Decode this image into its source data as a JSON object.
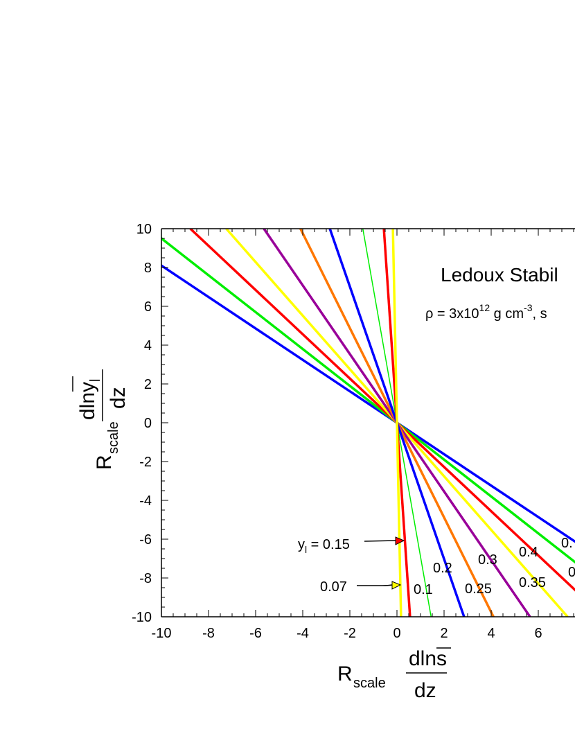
{
  "chart_data": {
    "type": "line",
    "title": "Ledoux Stabil",
    "subtitle": {
      "rho": "ρ = 3x10",
      "exp12": "12",
      "unit": " g cm",
      "exp_neg3": "-3",
      "tail": ",  s"
    },
    "xlabel": {
      "r": "R",
      "sub": "scale",
      "num": "dlns",
      "den": "dz"
    },
    "ylabel": {
      "r": "R",
      "sub": "scale",
      "num": "dlny",
      "num_sub": "l",
      "den": "dz"
    },
    "xlim": [
      -10,
      8.0
    ],
    "ylim": [
      -10,
      10
    ],
    "x_ticks": [
      "-10",
      "-8",
      "-6",
      "-4",
      "-2",
      "0",
      "2",
      "4",
      "6"
    ],
    "y_ticks": [
      "-10",
      "-8",
      "-6",
      "-4",
      "-2",
      "0",
      "2",
      "4",
      "6",
      "8",
      "10"
    ],
    "series": [
      {
        "slope": -0.81,
        "color": "#0000ff",
        "width": 3.5
      },
      {
        "slope": -0.95,
        "color": "#00ee00",
        "width": 3.5
      },
      {
        "slope": -1.14,
        "color": "#ff0000",
        "width": 3.5
      },
      {
        "slope": -1.38,
        "color": "#ffff00",
        "width": 3.5
      },
      {
        "slope": -1.77,
        "color": "#990099",
        "width": 3.5
      },
      {
        "slope": -2.44,
        "color": "#ff7700",
        "width": 3.5
      },
      {
        "slope": -3.51,
        "color": "#0000ff",
        "width": 3.5
      },
      {
        "slope": -6.9,
        "color": "#00ee00",
        "width": 1.5
      },
      {
        "slope": -18.0,
        "color": "#ff0000",
        "width": 3.5
      },
      {
        "slope": -58.0,
        "color": "#ffff00",
        "width": 3.5
      }
    ],
    "labels": {
      "yl_prefix": "y",
      "yl_sub": "l",
      "yl_value": " = 0.15",
      "l007": "0.07",
      "l01": "0.1",
      "l02": "0.2",
      "l025": "0.25",
      "l03": "0.3",
      "l035": "0.35",
      "l04": "0.4",
      "l0dot_a": "0.",
      "l0_b": "0"
    }
  }
}
